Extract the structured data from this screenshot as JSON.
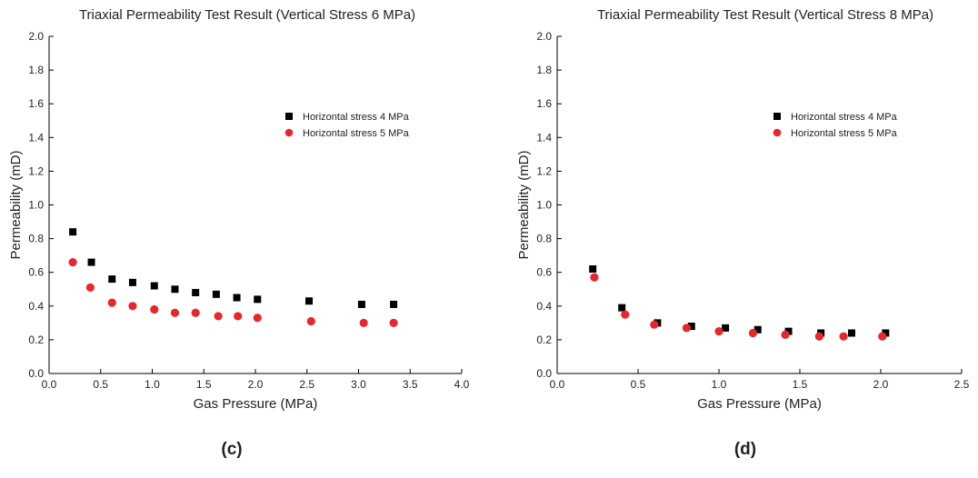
{
  "colors": {
    "series1": "#000000",
    "series2": "#e8262b",
    "axis": "#000000"
  },
  "chart_data": [
    {
      "type": "scatter",
      "title": "Triaxial Permeability Test Result (Vertical Stress 6 MPa)",
      "xlabel": "Gas Pressure (MPa)",
      "ylabel": "Permeability (mD)",
      "xlim": [
        0,
        4.0
      ],
      "ylim": [
        0,
        2.0
      ],
      "xticks": [
        "0.0",
        "0.5",
        "1.0",
        "1.5",
        "2.0",
        "2.5",
        "3.0",
        "3.5",
        "4.0"
      ],
      "yticks": [
        "0.0",
        "0.2",
        "0.4",
        "0.6",
        "0.8",
        "1.0",
        "1.2",
        "1.4",
        "1.6",
        "1.8",
        "2.0"
      ],
      "grid": false,
      "legend_position": "upper-right",
      "panel_label": "(c)",
      "series": [
        {
          "name": "Horizontal stress 4 MPa",
          "marker": "square",
          "x": [
            0.23,
            0.41,
            0.61,
            0.81,
            1.02,
            1.22,
            1.42,
            1.62,
            1.82,
            2.02,
            2.52,
            3.03,
            3.34
          ],
          "y": [
            0.84,
            0.66,
            0.56,
            0.54,
            0.52,
            0.5,
            0.48,
            0.47,
            0.45,
            0.44,
            0.43,
            0.41,
            0.41
          ]
        },
        {
          "name": "Horizontal stress 5 MPa",
          "marker": "circle",
          "x": [
            0.23,
            0.4,
            0.61,
            0.81,
            1.02,
            1.22,
            1.42,
            1.64,
            1.83,
            2.02,
            2.54,
            3.05,
            3.34
          ],
          "y": [
            0.66,
            0.51,
            0.42,
            0.4,
            0.38,
            0.36,
            0.36,
            0.34,
            0.34,
            0.33,
            0.31,
            0.3,
            0.3
          ]
        }
      ]
    },
    {
      "type": "scatter",
      "title": "Triaxial Permeability Test Result (Vertical Stress 8 MPa)",
      "xlabel": "Gas Pressure (MPa)",
      "ylabel": "Permeability (mD)",
      "xlim": [
        0,
        2.5
      ],
      "ylim": [
        0,
        2.0
      ],
      "xticks": [
        "0.0",
        "0.5",
        "1.0",
        "1.5",
        "2.0",
        "2.5"
      ],
      "yticks": [
        "0.0",
        "0.2",
        "0.4",
        "0.6",
        "0.8",
        "1.0",
        "1.2",
        "1.4",
        "1.6",
        "1.8",
        "2.0"
      ],
      "grid": false,
      "legend_position": "upper-right",
      "panel_label": "(d)",
      "series": [
        {
          "name": "Horizontal stress 4 MPa",
          "marker": "square",
          "x": [
            0.22,
            0.4,
            0.62,
            0.83,
            1.04,
            1.24,
            1.43,
            1.63,
            1.82,
            2.03
          ],
          "y": [
            0.62,
            0.39,
            0.3,
            0.28,
            0.27,
            0.26,
            0.25,
            0.24,
            0.24,
            0.24
          ]
        },
        {
          "name": "Horizontal stress 5 MPa",
          "marker": "circle",
          "x": [
            0.23,
            0.42,
            0.6,
            0.8,
            1.0,
            1.21,
            1.41,
            1.62,
            1.77,
            2.01
          ],
          "y": [
            0.57,
            0.35,
            0.29,
            0.27,
            0.25,
            0.24,
            0.23,
            0.22,
            0.22,
            0.22
          ]
        }
      ]
    }
  ]
}
